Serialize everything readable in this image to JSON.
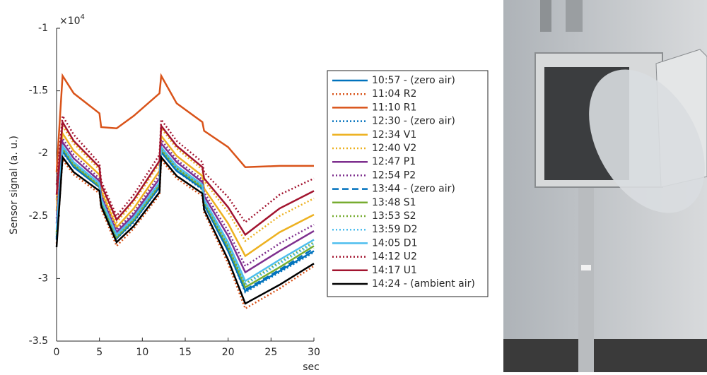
{
  "chart_data": {
    "type": "line",
    "y_label": "Sensor signal (a. u.)",
    "x_label": "sec",
    "y_multiplier": {
      "base": "×10",
      "exponent": "4"
    },
    "xlim": [
      0,
      30
    ],
    "xticks": [
      0,
      5,
      10,
      15,
      20,
      25,
      30
    ],
    "ylim": [
      -3.5,
      -1
    ],
    "yticks": [
      -3.5,
      -3,
      -2.5,
      -2,
      -1.5,
      -1
    ],
    "x": [
      0,
      0.7,
      2,
      5,
      5.2,
      7,
      9,
      12,
      12.2,
      14,
      17,
      17.2,
      20,
      22,
      26,
      30
    ],
    "series": [
      {
        "name": "10:57 - (zero air)",
        "color": "#0072BD",
        "style": "solid",
        "values": [
          -2.68,
          -1.98,
          -2.11,
          -2.27,
          -2.39,
          -2.68,
          -2.54,
          -2.27,
          -1.99,
          -2.14,
          -2.28,
          -2.41,
          -2.78,
          -3.1,
          -2.94,
          -2.78
        ]
      },
      {
        "name": "11:04 R2",
        "color": "#D95319",
        "style": "dotted",
        "values": [
          -2.72,
          -2.05,
          -2.17,
          -2.32,
          -2.44,
          -2.74,
          -2.6,
          -2.33,
          -2.05,
          -2.2,
          -2.34,
          -2.47,
          -2.88,
          -3.24,
          -3.08,
          -2.9
        ]
      },
      {
        "name": "11:10 R1",
        "color": "#D95319",
        "style": "solid",
        "values": [
          -2.15,
          -1.38,
          -1.52,
          -1.68,
          -1.79,
          -1.8,
          -1.7,
          -1.52,
          -1.38,
          -1.6,
          -1.75,
          -1.82,
          -1.95,
          -2.11,
          -2.1,
          -2.1
        ]
      },
      {
        "name": "12:30 - (zero air)",
        "color": "#0072BD",
        "style": "dotted",
        "values": [
          -2.69,
          -1.99,
          -2.11,
          -2.27,
          -2.39,
          -2.68,
          -2.55,
          -2.27,
          -1.99,
          -2.14,
          -2.29,
          -2.41,
          -2.78,
          -3.11,
          -2.95,
          -2.79
        ]
      },
      {
        "name": "12:34 V1",
        "color": "#EDB120",
        "style": "solid",
        "values": [
          -2.46,
          -1.84,
          -1.98,
          -2.17,
          -2.3,
          -2.59,
          -2.44,
          -2.14,
          -1.86,
          -2.02,
          -2.18,
          -2.28,
          -2.56,
          -2.82,
          -2.63,
          -2.49
        ]
      },
      {
        "name": "12:40 V2",
        "color": "#EDB120",
        "style": "dotted",
        "values": [
          -2.37,
          -1.78,
          -1.92,
          -2.13,
          -2.27,
          -2.55,
          -2.39,
          -2.08,
          -1.8,
          -1.96,
          -2.13,
          -2.22,
          -2.47,
          -2.7,
          -2.5,
          -2.36
        ]
      },
      {
        "name": "12:47 P1",
        "color": "#7E2F8E",
        "style": "solid",
        "values": [
          -2.56,
          -1.91,
          -2.04,
          -2.22,
          -2.34,
          -2.63,
          -2.49,
          -2.2,
          -1.92,
          -2.07,
          -2.23,
          -2.34,
          -2.66,
          -2.95,
          -2.78,
          -2.62
        ]
      },
      {
        "name": "12:54 P2",
        "color": "#7E2F8E",
        "style": "dotted",
        "values": [
          -2.52,
          -1.88,
          -2.01,
          -2.2,
          -2.33,
          -2.61,
          -2.47,
          -2.17,
          -1.89,
          -2.05,
          -2.21,
          -2.31,
          -2.62,
          -2.9,
          -2.72,
          -2.57
        ]
      },
      {
        "name": "13:44 - (zero air)",
        "color": "#0072BD",
        "style": "dashed",
        "values": [
          -2.67,
          -1.97,
          -2.1,
          -2.26,
          -2.39,
          -2.67,
          -2.54,
          -2.26,
          -1.98,
          -2.13,
          -2.28,
          -2.4,
          -2.77,
          -3.09,
          -2.93,
          -2.76
        ]
      },
      {
        "name": "13:48 S1",
        "color": "#77AC30",
        "style": "solid",
        "values": [
          -2.65,
          -1.96,
          -2.09,
          -2.26,
          -2.38,
          -2.67,
          -2.53,
          -2.25,
          -1.97,
          -2.12,
          -2.27,
          -2.39,
          -2.75,
          -3.07,
          -2.91,
          -2.74
        ]
      },
      {
        "name": "13:53 S2",
        "color": "#77AC30",
        "style": "dotted",
        "values": [
          -2.63,
          -1.95,
          -2.08,
          -2.25,
          -2.37,
          -2.66,
          -2.52,
          -2.24,
          -1.96,
          -2.11,
          -2.26,
          -2.38,
          -2.73,
          -3.04,
          -2.87,
          -2.71
        ]
      },
      {
        "name": "13:59 D2",
        "color": "#4DBEEE",
        "style": "dotted",
        "values": [
          -2.64,
          -1.95,
          -2.08,
          -2.25,
          -2.37,
          -2.66,
          -2.52,
          -2.24,
          -1.96,
          -2.12,
          -2.26,
          -2.38,
          -2.74,
          -3.05,
          -2.88,
          -2.72
        ]
      },
      {
        "name": "14:05 D1",
        "color": "#4DBEEE",
        "style": "solid",
        "values": [
          -2.61,
          -1.94,
          -2.07,
          -2.24,
          -2.36,
          -2.65,
          -2.51,
          -2.23,
          -1.95,
          -2.1,
          -2.25,
          -2.37,
          -2.71,
          -3.02,
          -2.85,
          -2.69
        ]
      },
      {
        "name": "14:12 U2",
        "color": "#A2142F",
        "style": "dotted",
        "values": [
          -2.25,
          -1.7,
          -1.85,
          -2.08,
          -2.22,
          -2.5,
          -2.33,
          -2.01,
          -1.73,
          -1.9,
          -2.07,
          -2.15,
          -2.35,
          -2.55,
          -2.33,
          -2.2
        ]
      },
      {
        "name": "14:17 U1",
        "color": "#A2142F",
        "style": "solid",
        "values": [
          -2.33,
          -1.75,
          -1.9,
          -2.11,
          -2.25,
          -2.53,
          -2.37,
          -2.06,
          -1.78,
          -1.94,
          -2.11,
          -2.2,
          -2.43,
          -2.65,
          -2.44,
          -2.3
        ]
      },
      {
        "name": "14:24 - (ambient air)",
        "color": "#000000",
        "style": "solid",
        "values": [
          -2.75,
          -2.03,
          -2.15,
          -2.3,
          -2.42,
          -2.71,
          -2.58,
          -2.31,
          -2.03,
          -2.18,
          -2.32,
          -2.45,
          -2.85,
          -3.2,
          -3.05,
          -2.88
        ]
      }
    ]
  }
}
